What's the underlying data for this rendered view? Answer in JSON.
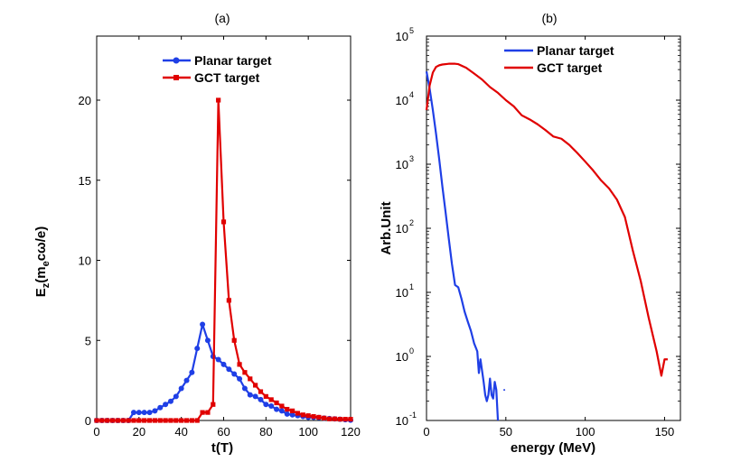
{
  "chart_data": [
    {
      "panel": "(a)",
      "type": "line",
      "title": "(a)",
      "xlabel": "t(T)",
      "ylabel_parts": {
        "main": "E",
        "sub": "z",
        "open": "(m",
        "sub2": "e",
        "rest": "cω/e)"
      },
      "xlim": [
        0,
        120
      ],
      "ylim": [
        0,
        24
      ],
      "xticks": [
        "0",
        "20",
        "40",
        "60",
        "80",
        "100",
        "120"
      ],
      "yticks": [
        "0",
        "5",
        "10",
        "15",
        "20"
      ],
      "legend_location": "top-center",
      "series": [
        {
          "name": "Planar target",
          "color": "#1f3fe6",
          "marker": "circle",
          "x": [
            0,
            2.5,
            5,
            7.5,
            10,
            12.5,
            15,
            17.5,
            20,
            22.5,
            25,
            27.5,
            30,
            32.5,
            35,
            37.5,
            40,
            42.5,
            45,
            47.5,
            50,
            52.5,
            55,
            57.5,
            60,
            62.5,
            65,
            67.5,
            70,
            72.5,
            75,
            77.5,
            80,
            82.5,
            85,
            87.5,
            90,
            92.5,
            95,
            97.5,
            100,
            102.5,
            105,
            107.5,
            110,
            112.5,
            115,
            117.5,
            120
          ],
          "values": [
            0,
            0,
            0,
            0,
            0,
            0,
            0,
            0.5,
            0.5,
            0.5,
            0.5,
            0.6,
            0.8,
            1.0,
            1.2,
            1.5,
            2.0,
            2.5,
            3.0,
            4.5,
            6.0,
            5.0,
            4.0,
            3.8,
            3.5,
            3.2,
            2.9,
            2.6,
            2.0,
            1.6,
            1.5,
            1.3,
            1.0,
            0.9,
            0.7,
            0.6,
            0.4,
            0.35,
            0.3,
            0.25,
            0.2,
            0.2,
            0.18,
            0.15,
            0.12,
            0.1,
            0.08,
            0.05,
            0.02
          ]
        },
        {
          "name": "GCT target",
          "color": "#e00000",
          "marker": "square",
          "x": [
            0,
            2.5,
            5,
            7.5,
            10,
            12.5,
            15,
            17.5,
            20,
            22.5,
            25,
            27.5,
            30,
            32.5,
            35,
            37.5,
            40,
            42.5,
            45,
            47.5,
            50,
            52.5,
            55,
            57.5,
            60,
            62.5,
            65,
            67.5,
            70,
            72.5,
            75,
            77.5,
            80,
            82.5,
            85,
            87.5,
            90,
            92.5,
            95,
            97.5,
            100,
            102.5,
            105,
            107.5,
            110,
            112.5,
            115,
            117.5,
            120
          ],
          "values": [
            0,
            0,
            0,
            0,
            0,
            0,
            0,
            0,
            0,
            0,
            0,
            0,
            0,
            0,
            0,
            0,
            0,
            0,
            0,
            0,
            0.5,
            0.5,
            1.0,
            20.0,
            12.4,
            7.5,
            5.0,
            3.5,
            3.0,
            2.6,
            2.2,
            1.8,
            1.5,
            1.3,
            1.1,
            0.9,
            0.7,
            0.6,
            0.45,
            0.35,
            0.3,
            0.25,
            0.2,
            0.15,
            0.1,
            0.1,
            0.08,
            0.08,
            0.08
          ]
        }
      ]
    },
    {
      "panel": "(b)",
      "type": "line",
      "title": "(b)",
      "xlabel": "energy (MeV)",
      "ylabel": "Arb.Unit",
      "yscale": "log",
      "xlim": [
        0,
        160
      ],
      "ylim": [
        0.1,
        100000
      ],
      "xticks": [
        "0",
        "50",
        "100",
        "150"
      ],
      "yticks": [
        {
          "base": "10",
          "exp": "-1"
        },
        {
          "base": "10",
          "exp": "0"
        },
        {
          "base": "10",
          "exp": "1"
        },
        {
          "base": "10",
          "exp": "2"
        },
        {
          "base": "10",
          "exp": "3"
        },
        {
          "base": "10",
          "exp": "4"
        },
        {
          "base": "10",
          "exp": "5"
        }
      ],
      "legend_location": "top-center",
      "series": [
        {
          "name": "Planar target",
          "color": "#1f3fe6",
          "x": [
            0,
            2,
            4,
            6,
            8,
            10,
            12,
            14,
            16,
            18,
            20,
            22,
            24,
            26,
            28,
            30,
            32,
            33,
            34,
            35,
            36,
            37,
            38,
            39,
            40,
            41,
            42,
            43,
            44,
            45
          ],
          "values": [
            28000,
            15000,
            7000,
            3000,
            1200,
            450,
            180,
            70,
            28,
            13,
            12,
            8,
            5,
            3.5,
            2.5,
            1.6,
            1.2,
            0.55,
            0.9,
            0.6,
            0.4,
            0.25,
            0.2,
            0.25,
            0.45,
            0.25,
            0.22,
            0.4,
            0.3,
            0.1
          ]
        },
        {
          "name": "GCT target",
          "color": "#e00000",
          "x": [
            0,
            2,
            4,
            6,
            8,
            10,
            14,
            18,
            20,
            25,
            30,
            35,
            40,
            45,
            50,
            55,
            60,
            65,
            70,
            75,
            80,
            85,
            90,
            95,
            100,
            105,
            110,
            115,
            120,
            125,
            130,
            135,
            140,
            145,
            148,
            150,
            152
          ],
          "values": [
            7000,
            17000,
            27000,
            33000,
            35000,
            36000,
            37000,
            37000,
            36500,
            32000,
            26000,
            21000,
            16000,
            13000,
            10000,
            8000,
            5800,
            5000,
            4200,
            3400,
            2700,
            2500,
            2000,
            1500,
            1100,
            800,
            560,
            420,
            280,
            150,
            45,
            15,
            4,
            1.2,
            0.5,
            0.9,
            0.9
          ]
        }
      ]
    }
  ]
}
